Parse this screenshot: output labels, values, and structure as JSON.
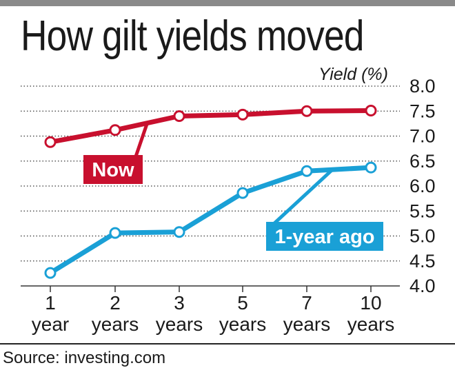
{
  "chart_data": {
    "type": "line",
    "title": "How gilt yields moved",
    "ylabel": "Yield (%)",
    "ylim": [
      4.0,
      8.0
    ],
    "yticks": [
      "8.0",
      "7.5",
      "7.0",
      "6.5",
      "6.0",
      "5.5",
      "5.0",
      "4.5",
      "4.0"
    ],
    "categories": [
      {
        "num": "1",
        "unit": "year"
      },
      {
        "num": "2",
        "unit": "years"
      },
      {
        "num": "3",
        "unit": "years"
      },
      {
        "num": "5",
        "unit": "years"
      },
      {
        "num": "7",
        "unit": "years"
      },
      {
        "num": "10",
        "unit": "years"
      }
    ],
    "series": [
      {
        "name": "Now",
        "color": "#c8102e",
        "values": [
          6.88,
          7.12,
          7.4,
          7.43,
          7.5,
          7.51
        ]
      },
      {
        "name": "1-year ago",
        "color": "#1aa0d6",
        "values": [
          4.26,
          5.06,
          5.08,
          5.86,
          6.3,
          6.37
        ]
      }
    ],
    "grid": true,
    "source": "Source: investing.com"
  }
}
